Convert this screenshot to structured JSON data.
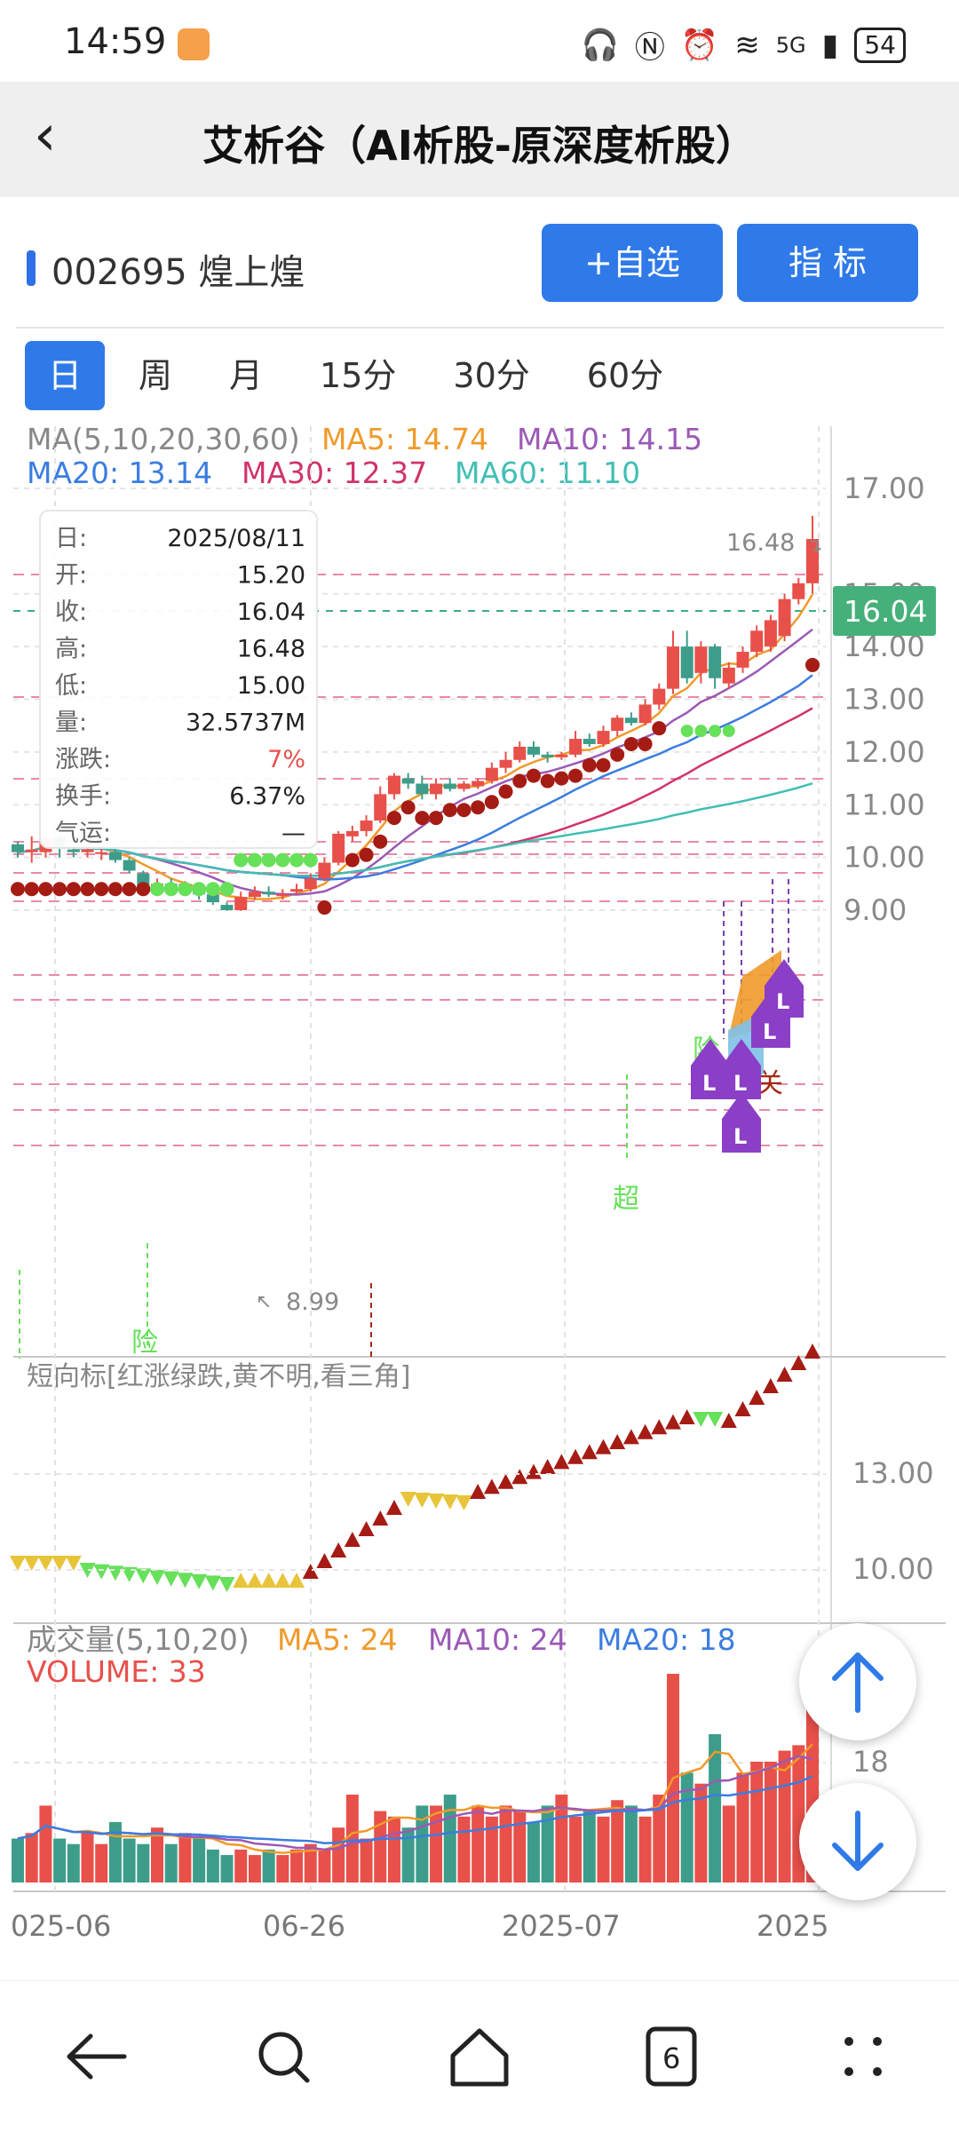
{
  "status": {
    "time": "14:59",
    "network": "5G",
    "battery": "54"
  },
  "header": {
    "title": "艾析谷（AI析股-原深度析股）"
  },
  "stock": {
    "code_name": "002695 煌上煌",
    "add_watch_label": "+自选",
    "indicator_label": "指 标"
  },
  "periods": [
    "日",
    "周",
    "月",
    "15分",
    "30分",
    "60分"
  ],
  "ma_legend": {
    "title": "MA(5,10,20,30,60)",
    "ma5": "MA5: 14.74",
    "ma10": "MA10: 14.15",
    "ma20": "MA20: 13.14",
    "ma30": "MA30: 12.37",
    "ma60": "MA60: 11.10",
    "colors": {
      "ma5": "#f09a2a",
      "ma10": "#9b59b6",
      "ma20": "#3b7de0",
      "ma30": "#d0336b",
      "ma60": "#40bfb5"
    }
  },
  "info_box": {
    "rows": [
      {
        "label": "日:",
        "value": "2025/08/11"
      },
      {
        "label": "开:",
        "value": "15.20"
      },
      {
        "label": "收:",
        "value": "16.04"
      },
      {
        "label": "高:",
        "value": "16.48"
      },
      {
        "label": "低:",
        "value": "15.00"
      },
      {
        "label": "量:",
        "value": "32.5737M"
      },
      {
        "label": "涨跌:",
        "value": "7%"
      },
      {
        "label": "换手:",
        "value": "6.37%"
      },
      {
        "label": "气运:",
        "value": "—"
      }
    ]
  },
  "price_axis": [
    "17.00",
    "15.00",
    "14.00",
    "13.00",
    "12.00",
    "11.00",
    "10.00",
    "9.00"
  ],
  "current_price": "16.04",
  "high_mark": "16.48",
  "low_mark": "8.99",
  "chart_marks": {
    "risk": "险",
    "super": "超",
    "risk2": "险",
    "close": "关",
    "l": "L"
  },
  "short_panel": {
    "title": "短向标[红涨绿跌,黄不明,看三角]",
    "axis": [
      "13.00",
      "10.00"
    ]
  },
  "volume_panel": {
    "title": "成交量(5,10,20)",
    "ma5": "MA5: 24",
    "ma10": "MA10: 24",
    "ma20": "MA20: 18",
    "volume": "VOLUME: 33",
    "axis": "18"
  },
  "date_axis": [
    "025-06",
    "06-26",
    "2025-07",
    "2025"
  ],
  "colors": {
    "up": "#e8504a",
    "down": "#3d9d8a",
    "accent": "#2f7ae8"
  },
  "chart_data": {
    "type": "candlestick",
    "candles": [
      [
        10.25,
        10.1,
        10.3,
        10.0
      ],
      [
        10.1,
        10.15,
        10.4,
        9.9
      ],
      [
        10.1,
        10.35,
        10.4,
        10.0
      ],
      [
        10.4,
        10.2,
        10.45,
        10.0
      ],
      [
        10.15,
        10.1,
        10.2,
        10.0
      ],
      [
        10.1,
        10.15,
        10.2,
        10.0
      ],
      [
        10.1,
        10.1,
        10.2,
        9.95
      ],
      [
        10.1,
        9.95,
        10.15,
        9.9
      ],
      [
        9.95,
        9.75,
        10.0,
        9.7
      ],
      [
        9.7,
        9.4,
        9.75,
        9.35
      ],
      [
        9.4,
        9.5,
        9.6,
        9.3
      ],
      [
        9.5,
        9.4,
        9.6,
        9.35
      ],
      [
        9.45,
        9.5,
        9.55,
        9.3
      ],
      [
        9.4,
        9.3,
        9.5,
        9.2
      ],
      [
        9.3,
        9.15,
        9.35,
        9.1
      ],
      [
        9.1,
        9.0,
        9.15,
        8.99
      ],
      [
        9.0,
        9.25,
        9.35,
        8.99
      ],
      [
        9.25,
        9.35,
        9.45,
        9.2
      ],
      [
        9.35,
        9.3,
        9.45,
        9.25
      ],
      [
        9.3,
        9.3,
        9.4,
        9.2
      ],
      [
        9.35,
        9.4,
        9.5,
        9.3
      ],
      [
        9.4,
        9.6,
        9.7,
        9.35
      ],
      [
        9.6,
        9.9,
        10.0,
        9.55
      ],
      [
        9.9,
        10.45,
        10.5,
        9.85
      ],
      [
        10.4,
        10.5,
        10.6,
        10.3
      ],
      [
        10.5,
        10.7,
        10.8,
        10.4
      ],
      [
        10.7,
        11.2,
        11.35,
        10.65
      ],
      [
        11.2,
        11.55,
        11.6,
        11.1
      ],
      [
        11.5,
        11.4,
        11.6,
        11.3
      ],
      [
        11.4,
        11.2,
        11.55,
        11.1
      ],
      [
        11.2,
        11.4,
        11.5,
        11.1
      ],
      [
        11.4,
        11.3,
        11.5,
        11.25
      ],
      [
        11.3,
        11.4,
        11.45,
        11.25
      ],
      [
        11.35,
        11.45,
        11.5,
        11.3
      ],
      [
        11.45,
        11.7,
        11.8,
        11.4
      ],
      [
        11.7,
        11.85,
        12.0,
        11.6
      ],
      [
        11.85,
        12.1,
        12.2,
        11.8
      ],
      [
        12.1,
        11.95,
        12.2,
        11.9
      ],
      [
        11.95,
        11.9,
        12.0,
        11.8
      ],
      [
        11.9,
        11.95,
        12.0,
        11.85
      ],
      [
        11.95,
        12.25,
        12.4,
        11.9
      ],
      [
        12.25,
        12.15,
        12.35,
        12.1
      ],
      [
        12.15,
        12.4,
        12.5,
        12.1
      ],
      [
        12.4,
        12.65,
        12.7,
        12.3
      ],
      [
        12.65,
        12.55,
        12.75,
        12.5
      ],
      [
        12.55,
        12.9,
        13.0,
        12.5
      ],
      [
        12.9,
        13.2,
        13.3,
        12.8
      ],
      [
        13.2,
        14.0,
        14.3,
        13.1
      ],
      [
        14.0,
        13.4,
        14.3,
        13.3
      ],
      [
        13.5,
        14.0,
        14.1,
        13.3
      ],
      [
        14.0,
        13.4,
        14.05,
        13.2
      ],
      [
        13.3,
        13.6,
        13.7,
        13.2
      ],
      [
        13.6,
        13.9,
        14.0,
        13.5
      ],
      [
        13.9,
        14.3,
        14.4,
        13.8
      ],
      [
        14.0,
        14.5,
        14.6,
        13.9
      ],
      [
        14.2,
        14.9,
        15.0,
        14.1
      ],
      [
        14.9,
        15.2,
        15.3,
        14.8
      ],
      [
        15.2,
        16.04,
        16.48,
        15.0
      ]
    ],
    "volume_ma": {
      "ma5": 24,
      "ma10": 24,
      "ma20": 18
    },
    "volume": 33
  }
}
